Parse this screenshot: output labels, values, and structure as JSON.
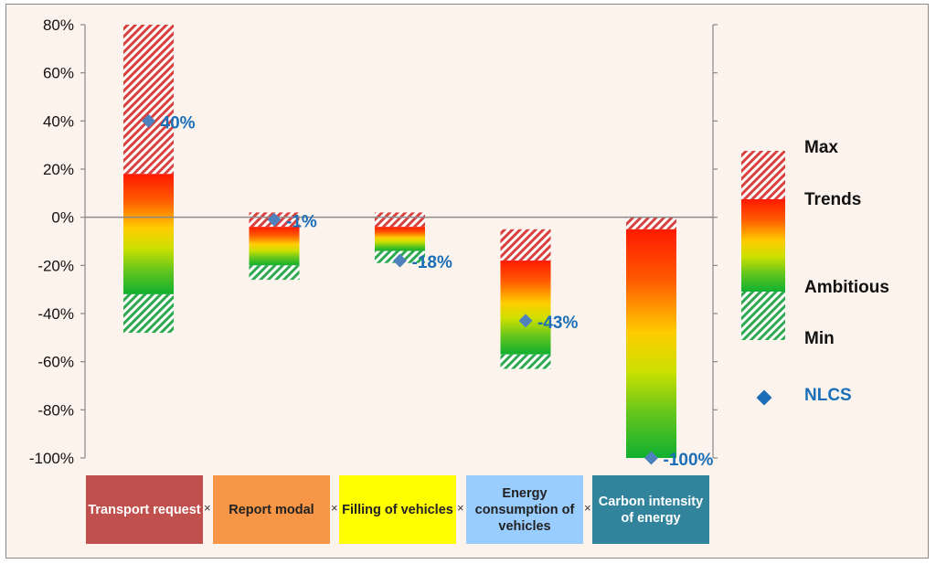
{
  "chart_data": {
    "type": "range-bar",
    "ylim": [
      -100,
      80
    ],
    "y_ticks": [
      "80%",
      "60%",
      "40%",
      "20%",
      "0%",
      "-20%",
      "-40%",
      "-60%",
      "-80%",
      "-100%"
    ],
    "y_tick_values": [
      80,
      60,
      40,
      20,
      0,
      -20,
      -40,
      -60,
      -80,
      -100
    ],
    "categories": [
      {
        "label": "Transport request",
        "color": "#c0504d",
        "max": 80,
        "trends": 18,
        "ambitious": -32,
        "min": -48,
        "nlcs": 40,
        "nlcs_label": "40%"
      },
      {
        "label": "Report modal",
        "color": "#f79646",
        "max": 2,
        "trends": -4,
        "ambitious": -20,
        "min": -26,
        "nlcs": -1,
        "nlcs_label": "-1%"
      },
      {
        "label": "Filling of vehicles",
        "color": "#ffff00",
        "max": 2,
        "trends": -4,
        "ambitious": -14,
        "min": -19,
        "nlcs": -18,
        "nlcs_label": "-18%"
      },
      {
        "label": "Energy consumption of vehicles",
        "color": "#99ccff",
        "max": -5,
        "trends": -18,
        "ambitious": -57,
        "min": -63,
        "nlcs": -43,
        "nlcs_label": "-43%"
      },
      {
        "label": "Carbon intensity of energy",
        "color": "#31849b",
        "max": 0,
        "trends": -5,
        "ambitious": -100,
        "min": -100,
        "nlcs": -100,
        "nlcs_label": "-100%"
      }
    ],
    "operator": "×",
    "legend": {
      "placement": "right",
      "items": [
        "Max",
        "Trends",
        "Ambitious",
        "Min"
      ],
      "marker_label": "NLCS",
      "marker_color": "#4f81bd"
    }
  }
}
